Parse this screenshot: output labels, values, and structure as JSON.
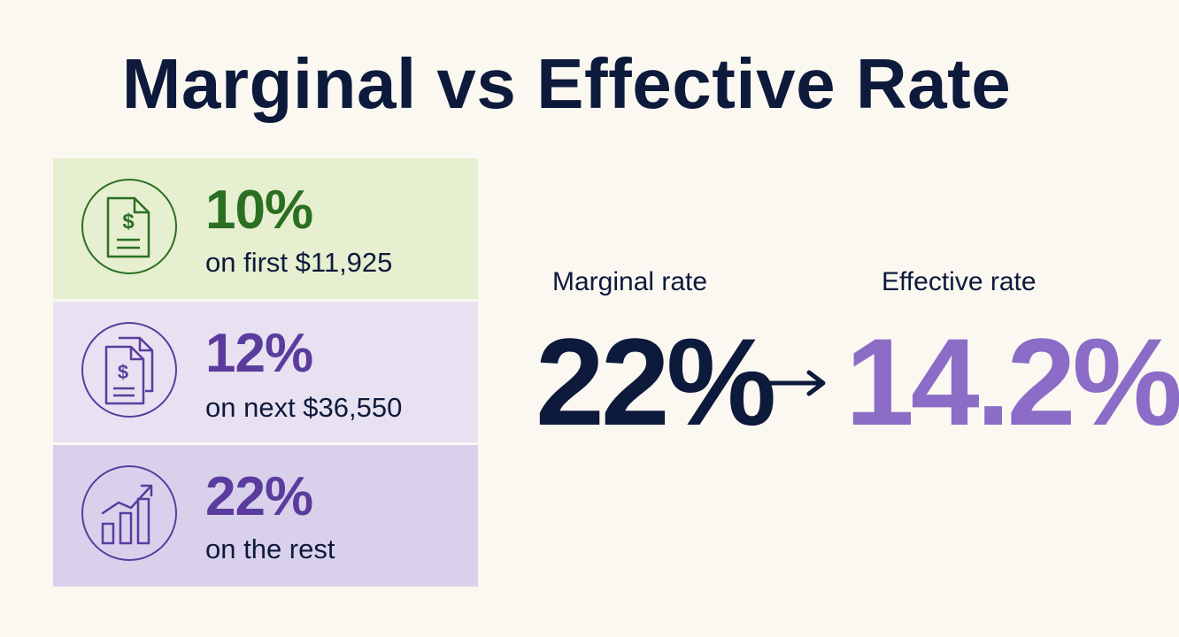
{
  "title": "Marginal vs Effective Rate",
  "brackets": [
    {
      "rate": "10%",
      "description": "on first $11,925",
      "icon": "dollar-document-icon",
      "color": "#2b6f22"
    },
    {
      "rate": "12%",
      "description": "on next $36,550",
      "icon": "stacked-dollar-documents-icon",
      "color": "#5b3c9e"
    },
    {
      "rate": "22%",
      "description": "on the rest",
      "icon": "rising-bar-chart-icon",
      "color": "#5b3c9e"
    }
  ],
  "comparison": {
    "marginal_label": "Marginal rate",
    "marginal_value": "22%",
    "effective_label": "Effective rate",
    "effective_value": "14.2%",
    "arrow_icon": "right-arrow-icon"
  },
  "colors": {
    "background": "#fbf8f1",
    "navy": "#0e1a3c",
    "green_band": "#e6efcf",
    "lavender_band": "#e7e1f1",
    "purple_band": "#d9d1ec",
    "effective_purple": "#8b6cc7"
  }
}
